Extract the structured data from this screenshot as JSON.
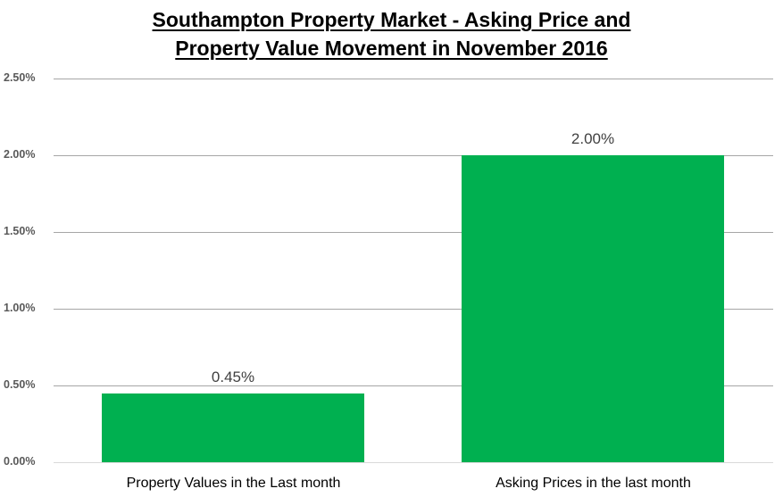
{
  "chart_data": {
    "type": "bar",
    "title": "Southampton Property Market - Asking Price and Property Value Movement in November 2016",
    "title_lines": [
      "Southampton Property Market - Asking Price and",
      "Property Value Movement in November 2016"
    ],
    "categories": [
      "Property Values in the Last month",
      "Asking Prices in the last month"
    ],
    "values": [
      0.45,
      2.0
    ],
    "data_labels": [
      "0.45%",
      "2.00%"
    ],
    "xlabel": "",
    "ylabel": "",
    "ylim": [
      0,
      2.5
    ],
    "yticks": [
      "0.00%",
      "0.50%",
      "1.00%",
      "1.50%",
      "2.00%",
      "2.50%"
    ],
    "grid": true,
    "legend": null,
    "bar_color": "#00b050"
  }
}
